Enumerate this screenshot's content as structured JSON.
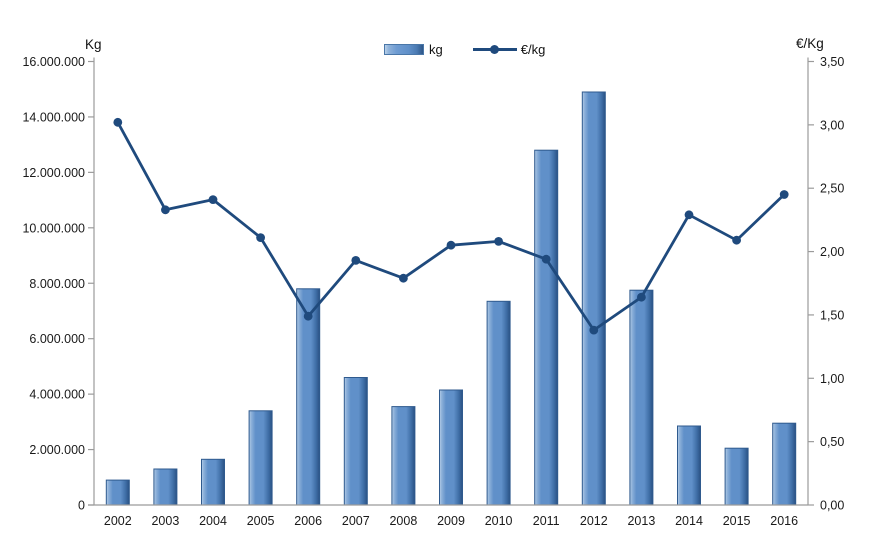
{
  "chart_data": {
    "type": "combo",
    "title": "",
    "categories": [
      "2002",
      "2003",
      "2004",
      "2005",
      "2006",
      "2007",
      "2008",
      "2009",
      "2010",
      "2011",
      "2012",
      "2013",
      "2014",
      "2015",
      "2016"
    ],
    "series": [
      {
        "name": "kg",
        "type": "bar",
        "axis": "left",
        "values": [
          900000,
          1300000,
          1650000,
          3400000,
          7800000,
          4600000,
          3550000,
          4150000,
          7350000,
          12800000,
          14900000,
          7750000,
          2850000,
          2050000,
          2950000
        ]
      },
      {
        "name": "€/kg",
        "type": "line",
        "axis": "right",
        "values": [
          3.02,
          2.33,
          2.41,
          2.11,
          1.49,
          1.93,
          1.79,
          2.05,
          2.08,
          1.94,
          1.38,
          1.64,
          2.29,
          2.09,
          2.45
        ]
      }
    ],
    "left_axis": {
      "title": "Kg",
      "min": 0,
      "max": 16000000,
      "step": 2000000,
      "tick_labels": [
        "0",
        "2.000.000",
        "4.000.000",
        "6.000.000",
        "8.000.000",
        "10.000.000",
        "12.000.000",
        "14.000.000",
        "16.000.000"
      ]
    },
    "right_axis": {
      "title": "€/Kg",
      "min": 0,
      "max": 3.5,
      "step": 0.5,
      "tick_labels": [
        "0,00",
        "0,50",
        "1,00",
        "1,50",
        "2,00",
        "2,50",
        "3,00",
        "3,50"
      ]
    },
    "legend": {
      "position": "top",
      "entries": [
        "kg",
        "€/kg"
      ]
    },
    "grid": false
  },
  "colors": {
    "bar_light": "#b7cfe8",
    "bar_mid_light": "#8fb2da",
    "bar_mid": "#6090c9",
    "bar_dark": "#3f6ea6",
    "bar_edge": "#2a5183",
    "bar_stroke": "#2f5a8e",
    "line": "#1f4a7d",
    "axis": "#9b9b9b",
    "text": "#1a1a1a"
  }
}
